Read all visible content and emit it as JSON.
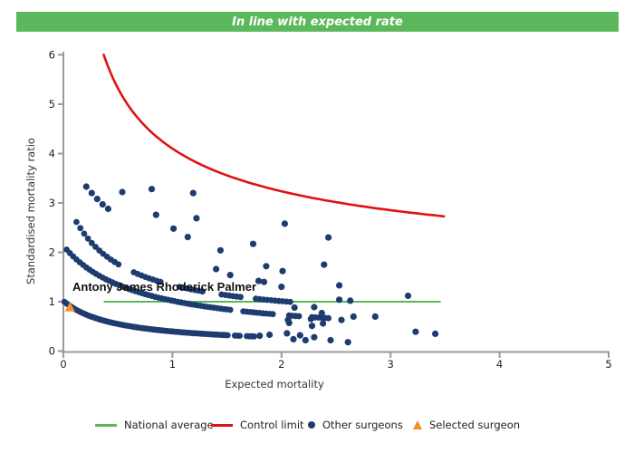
{
  "banner": {
    "text": "In line with expected rate",
    "bg_color": "#5cb85c"
  },
  "chart_data": {
    "type": "scatter",
    "xlabel": "Expected mortality",
    "ylabel": "Standardised mortality ratio",
    "xlim": [
      0,
      5
    ],
    "ylim": [
      0,
      6
    ],
    "x_ticks": [
      "0",
      "1",
      "2",
      "3",
      "4",
      "5"
    ],
    "y_ticks": [
      "0",
      "1",
      "2",
      "3",
      "4",
      "5",
      "6"
    ],
    "grid": "off",
    "national_average": {
      "y": 1.0,
      "x_start": 0.37,
      "x_end": 3.46,
      "color": "#57b957"
    },
    "control_limit": {
      "formula": "y = 1.15 + 2.95/sqrt(x)",
      "c": 1.15,
      "k": 2.95,
      "x_start": 0.37,
      "x_end": 3.5,
      "color": "#e11212"
    },
    "selected_surgeon": {
      "name": "Antony James Rhoderick Palmer",
      "x": 0.06,
      "y": 0.89,
      "color": "#f0912b"
    },
    "other_surgeons": {
      "color": "#1d3c6f",
      "bands": [
        {
          "c": 0.1,
          "k": 0.44,
          "d": 0.48,
          "x_start": 0.01,
          "x_end": 1.75,
          "step": 0.022,
          "gaps": [
            [
              1.52,
              1.56
            ],
            [
              1.63,
              1.67
            ]
          ]
        },
        {
          "c": 0.25,
          "k": 1.3,
          "d": 0.69,
          "x_start": 0.03,
          "x_end": 2.45,
          "step": 0.03,
          "gaps": [
            [
              1.55,
              1.64
            ],
            [
              1.95,
              2.06
            ],
            [
              2.18,
              2.27
            ]
          ]
        },
        {
          "c": 0.55,
          "k": 1.115,
          "d": 0.42,
          "x_start": 0.12,
          "x_end": 2.1,
          "step": 0.035,
          "gaps": [
            [
              0.52,
              0.64
            ],
            [
              0.92,
              1.04
            ],
            [
              1.3,
              1.42
            ],
            [
              1.64,
              1.74
            ]
          ]
        }
      ],
      "points": [
        [
          0.21,
          3.33
        ],
        [
          0.26,
          3.2
        ],
        [
          0.31,
          3.08
        ],
        [
          0.36,
          2.97
        ],
        [
          0.41,
          2.88
        ],
        [
          0.54,
          3.22
        ],
        [
          0.81,
          3.28
        ],
        [
          1.19,
          3.2
        ],
        [
          0.85,
          2.76
        ],
        [
          1.22,
          2.69
        ],
        [
          2.03,
          2.58
        ],
        [
          1.01,
          2.48
        ],
        [
          1.14,
          2.31
        ],
        [
          1.44,
          2.04
        ],
        [
          1.74,
          2.17
        ],
        [
          2.43,
          2.3
        ],
        [
          1.4,
          1.66
        ],
        [
          1.53,
          1.54
        ],
        [
          1.86,
          1.72
        ],
        [
          2.39,
          1.75
        ],
        [
          1.79,
          1.42
        ],
        [
          1.84,
          1.4
        ],
        [
          2.01,
          1.62
        ],
        [
          2.0,
          1.3
        ],
        [
          2.53,
          1.33
        ],
        [
          3.16,
          1.12
        ],
        [
          2.53,
          1.04
        ],
        [
          2.63,
          1.02
        ],
        [
          2.12,
          0.88
        ],
        [
          2.3,
          0.89
        ],
        [
          2.37,
          0.77
        ],
        [
          2.66,
          0.7
        ],
        [
          2.86,
          0.7
        ],
        [
          2.06,
          0.63
        ],
        [
          2.27,
          0.65
        ],
        [
          2.55,
          0.63
        ],
        [
          2.07,
          0.57
        ],
        [
          2.38,
          0.56
        ],
        [
          2.28,
          0.51
        ],
        [
          3.23,
          0.39
        ],
        [
          3.41,
          0.35
        ],
        [
          1.8,
          0.31
        ],
        [
          1.89,
          0.33
        ],
        [
          2.05,
          0.36
        ],
        [
          2.17,
          0.32
        ],
        [
          2.3,
          0.28
        ],
        [
          2.11,
          0.24
        ],
        [
          2.22,
          0.22
        ],
        [
          2.45,
          0.22
        ],
        [
          2.61,
          0.18
        ]
      ]
    }
  },
  "legend": {
    "items": [
      {
        "label": "National average",
        "type": "line",
        "color": "#57b957"
      },
      {
        "label": "Control limit",
        "type": "line",
        "color": "#e11212"
      },
      {
        "label": "Other surgeons",
        "type": "dot",
        "color": "#1d3c6f"
      },
      {
        "label": "Selected surgeon",
        "type": "triangle",
        "color": "#f0912b"
      }
    ]
  }
}
